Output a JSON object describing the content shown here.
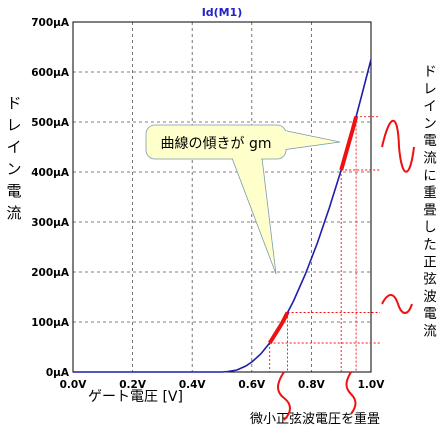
{
  "chart_data": {
    "type": "line",
    "title": "Id(M1)",
    "xlabel": "ゲート電圧 [V]",
    "ylabel": "ドレイン電流",
    "xlim": [
      0.0,
      1.0
    ],
    "ylim": [
      0,
      700
    ],
    "x_ticks": [
      "0.0V",
      "0.2V",
      "0.4V",
      "0.6V",
      "0.8V",
      "1.0V"
    ],
    "y_ticks": [
      "0μA",
      "100μA",
      "200μA",
      "300μA",
      "400μA",
      "500μA",
      "600μA",
      "700μA"
    ],
    "grid": true,
    "series": [
      {
        "color": "#1f1faa",
        "x": [
          0.0,
          0.5,
          0.52,
          0.55,
          0.58,
          0.6,
          0.63,
          0.66,
          0.7,
          0.74,
          0.78,
          0.82,
          0.86,
          0.9,
          0.94,
          0.97,
          1.0
        ],
        "values": [
          0,
          0,
          1,
          4,
          12,
          20,
          36,
          58,
          96,
          142,
          196,
          258,
          328,
          404,
          488,
          556,
          625
        ]
      }
    ],
    "highlights": [
      {
        "color": "#ee1111",
        "x": [
          0.66,
          0.72
        ]
      },
      {
        "color": "#ee1111",
        "x": [
          0.9,
          0.95
        ]
      }
    ],
    "annotations": {
      "callout": "曲線の傾きが gm",
      "right_label": "ドレイン電流に重畳した正弦波電流",
      "bottom_label": "微小正弦波電圧を重畳"
    }
  },
  "colors": {
    "curve": "#1f1faa",
    "highlight": "#ee1111",
    "callout_fill": "#ffffcc",
    "title": "#2222cc"
  }
}
